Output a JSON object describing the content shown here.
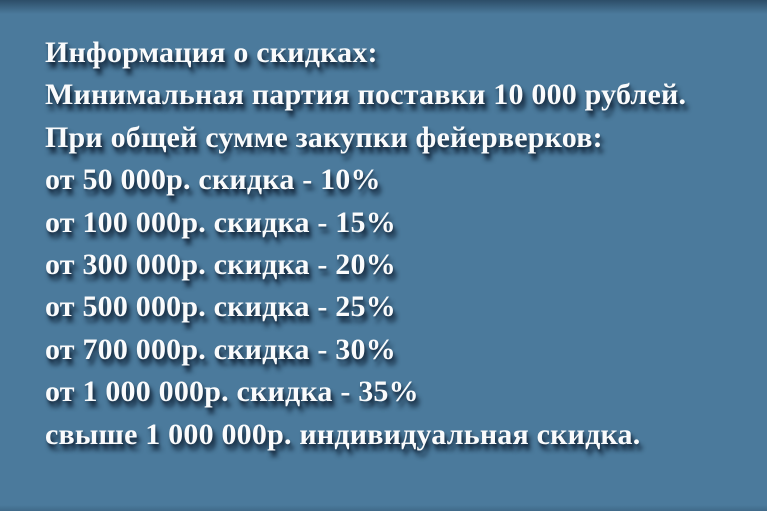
{
  "banner": {
    "background_color": "#4b7a9c",
    "text_color": "#fafbfc",
    "shadow_color": "#102236",
    "lines": [
      "Информация о скидках:",
      "Минимальная партия поставки 10 000 рублей.",
      "При общей сумме закупки фейерверков:",
      "от 50 000р. скидка - 10%",
      "от 100 000р. скидка - 15%",
      "от 300 000р. скидка - 20%",
      "от 500 000р. скидка - 25%",
      "от 700 000р. скидка - 30%",
      "от 1 000 000р. скидка - 35%",
      "свыше 1 000 000р. индивидуальная скидка."
    ]
  }
}
